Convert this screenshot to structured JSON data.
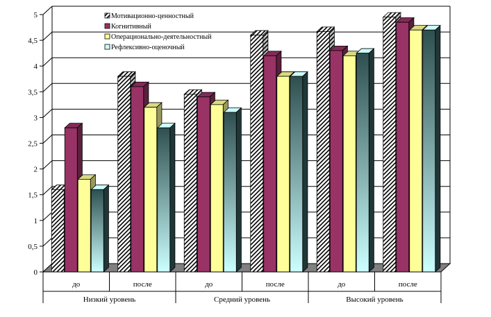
{
  "chart_data": {
    "type": "bar",
    "view": "3d-clustered",
    "ylim": [
      0,
      5
    ],
    "yticks": [
      "0",
      "0,5",
      "1",
      "1,5",
      "2",
      "2,5",
      "3",
      "3,5",
      "4",
      "4,5",
      "5"
    ],
    "grid": "horizontal",
    "legend_position": "top-left",
    "groups": [
      {
        "label": "Низкий уровень",
        "categories": [
          "до",
          "после"
        ]
      },
      {
        "label": "Средний уровень",
        "categories": [
          "до",
          "после"
        ]
      },
      {
        "label": "Высокий уровень",
        "categories": [
          "до",
          "после"
        ]
      }
    ],
    "categories": [
      "до",
      "после",
      "до",
      "после",
      "до",
      "после"
    ],
    "series": [
      {
        "name": "Мотивационно-ценностный",
        "fill": "hatch",
        "color": "#000000",
        "values": [
          1.6,
          3.8,
          3.45,
          4.6,
          4.67,
          4.95
        ]
      },
      {
        "name": "Когнитивный",
        "fill": "solid",
        "color": "#993366",
        "values": [
          2.8,
          3.6,
          3.4,
          4.2,
          4.3,
          4.85
        ]
      },
      {
        "name": "Операционально-деятельностный",
        "fill": "solid",
        "color": "#ffff99",
        "values": [
          1.8,
          3.2,
          3.25,
          3.8,
          4.2,
          4.7
        ]
      },
      {
        "name": "Рефлексивно-оценочный",
        "fill": "gradient",
        "color": "#ccffff",
        "colors": [
          "#2f4f4f",
          "#ccffff"
        ],
        "values": [
          1.6,
          2.8,
          3.1,
          3.8,
          4.25,
          4.7
        ]
      }
    ]
  }
}
